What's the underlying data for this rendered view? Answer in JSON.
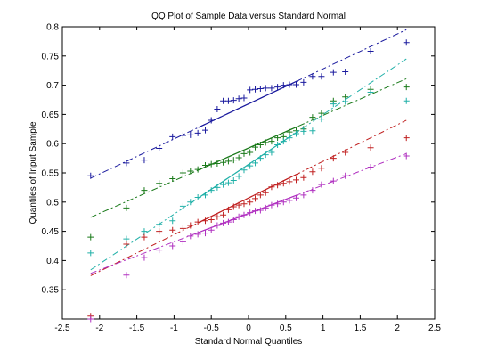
{
  "chart_data": {
    "type": "scatter",
    "title": "QQ Plot of Sample Data versus Standard Normal",
    "xlabel": "Standard Normal Quantiles",
    "ylabel": "Quantiles of Input Sample",
    "xlim": [
      -2.5,
      2.5
    ],
    "ylim": [
      0.3,
      0.8
    ],
    "xticks": [
      "-2.5",
      "-2",
      "-1.5",
      "-1",
      "-0.5",
      "0",
      "0.5",
      "1",
      "1.5",
      "2",
      "2.5"
    ],
    "yticks": [
      "0.35",
      "0.4",
      "0.45",
      "0.5",
      "0.55",
      "0.6",
      "0.65",
      "0.7",
      "0.75",
      "0.8"
    ],
    "grid": false,
    "legend": "none",
    "marker": "+",
    "series": [
      {
        "color": "#1a1a9e",
        "x": [
          -2.12,
          -1.64,
          -1.4,
          -1.2,
          -1.02,
          -0.88,
          -0.78,
          -0.68,
          -0.58,
          -0.5,
          -0.42,
          -0.34,
          -0.27,
          -0.2,
          -0.13,
          -0.06,
          0.02,
          0.09,
          0.16,
          0.23,
          0.31,
          0.39,
          0.47,
          0.55,
          0.64,
          0.74,
          0.86,
          0.98,
          1.14,
          1.3,
          1.64,
          2.12
        ],
        "y": [
          0.545,
          0.567,
          0.572,
          0.592,
          0.612,
          0.614,
          0.615,
          0.618,
          0.623,
          0.64,
          0.659,
          0.673,
          0.673,
          0.674,
          0.677,
          0.678,
          0.692,
          0.693,
          0.694,
          0.695,
          0.695,
          0.697,
          0.7,
          0.701,
          0.701,
          0.705,
          0.715,
          0.715,
          0.722,
          0.723,
          0.758,
          0.773
        ],
        "fit": {
          "x": [
            -2.12,
            2.12
          ],
          "y": [
            0.541,
            0.795
          ]
        }
      },
      {
        "color": "#1a7a1a",
        "x": [
          -2.12,
          -1.64,
          -1.4,
          -1.2,
          -1.02,
          -0.88,
          -0.78,
          -0.68,
          -0.58,
          -0.5,
          -0.42,
          -0.34,
          -0.27,
          -0.2,
          -0.13,
          -0.06,
          0.02,
          0.09,
          0.16,
          0.23,
          0.31,
          0.39,
          0.47,
          0.55,
          0.64,
          0.74,
          0.86,
          0.98,
          1.14,
          1.3,
          1.64,
          2.12
        ],
        "y": [
          0.44,
          0.49,
          0.52,
          0.532,
          0.54,
          0.55,
          0.553,
          0.556,
          0.563,
          0.565,
          0.566,
          0.568,
          0.57,
          0.572,
          0.576,
          0.583,
          0.585,
          0.594,
          0.598,
          0.602,
          0.604,
          0.61,
          0.612,
          0.62,
          0.622,
          0.625,
          0.645,
          0.652,
          0.673,
          0.68,
          0.693,
          0.697
        ],
        "fit": {
          "x": [
            -2.12,
            2.12
          ],
          "y": [
            0.474,
            0.711
          ]
        }
      },
      {
        "color": "#20b0a8",
        "x": [
          -2.12,
          -1.64,
          -1.4,
          -1.2,
          -1.02,
          -0.88,
          -0.78,
          -0.68,
          -0.58,
          -0.5,
          -0.42,
          -0.34,
          -0.27,
          -0.2,
          -0.13,
          -0.06,
          0.02,
          0.09,
          0.16,
          0.23,
          0.31,
          0.39,
          0.47,
          0.55,
          0.64,
          0.74,
          0.86,
          0.98,
          1.14,
          1.3,
          1.64,
          2.12
        ],
        "y": [
          0.413,
          0.437,
          0.45,
          0.462,
          0.468,
          0.493,
          0.5,
          0.508,
          0.512,
          0.52,
          0.525,
          0.53,
          0.533,
          0.537,
          0.544,
          0.555,
          0.562,
          0.567,
          0.575,
          0.581,
          0.585,
          0.598,
          0.604,
          0.61,
          0.617,
          0.621,
          0.622,
          0.642,
          0.668,
          0.672,
          0.688,
          0.673
        ],
        "fit": {
          "x": [
            -2.12,
            2.12
          ],
          "y": [
            0.384,
            0.745
          ]
        }
      },
      {
        "color": "#c02020",
        "x": [
          -2.12,
          -1.64,
          -1.4,
          -1.2,
          -1.02,
          -0.88,
          -0.78,
          -0.68,
          -0.58,
          -0.5,
          -0.42,
          -0.34,
          -0.27,
          -0.2,
          -0.13,
          -0.06,
          0.02,
          0.09,
          0.16,
          0.23,
          0.31,
          0.39,
          0.47,
          0.55,
          0.64,
          0.74,
          0.86,
          0.98,
          1.14,
          1.3,
          1.64,
          2.12
        ],
        "y": [
          0.305,
          0.428,
          0.44,
          0.45,
          0.452,
          0.455,
          0.46,
          0.466,
          0.468,
          0.47,
          0.475,
          0.478,
          0.487,
          0.492,
          0.495,
          0.497,
          0.5,
          0.506,
          0.512,
          0.516,
          0.526,
          0.529,
          0.532,
          0.535,
          0.538,
          0.542,
          0.552,
          0.558,
          0.575,
          0.585,
          0.593,
          0.61
        ],
        "fit": {
          "x": [
            -2.12,
            2.12
          ],
          "y": [
            0.374,
            0.64
          ]
        }
      },
      {
        "color": "#b030c0",
        "x": [
          -2.12,
          -1.64,
          -1.4,
          -1.2,
          -1.02,
          -0.88,
          -0.78,
          -0.68,
          -0.58,
          -0.5,
          -0.42,
          -0.34,
          -0.27,
          -0.2,
          -0.13,
          -0.06,
          0.02,
          0.09,
          0.16,
          0.23,
          0.31,
          0.39,
          0.47,
          0.55,
          0.64,
          0.74,
          0.86,
          0.98,
          1.14,
          1.3,
          1.64,
          2.12
        ],
        "y": [
          0.3,
          0.375,
          0.405,
          0.418,
          0.425,
          0.432,
          0.442,
          0.445,
          0.447,
          0.452,
          0.46,
          0.464,
          0.466,
          0.47,
          0.475,
          0.478,
          0.482,
          0.485,
          0.486,
          0.49,
          0.495,
          0.497,
          0.5,
          0.503,
          0.507,
          0.512,
          0.52,
          0.53,
          0.536,
          0.545,
          0.56,
          0.579
        ],
        "fit": {
          "x": [
            -2.12,
            2.12
          ],
          "y": [
            0.378,
            0.583
          ]
        }
      }
    ]
  }
}
